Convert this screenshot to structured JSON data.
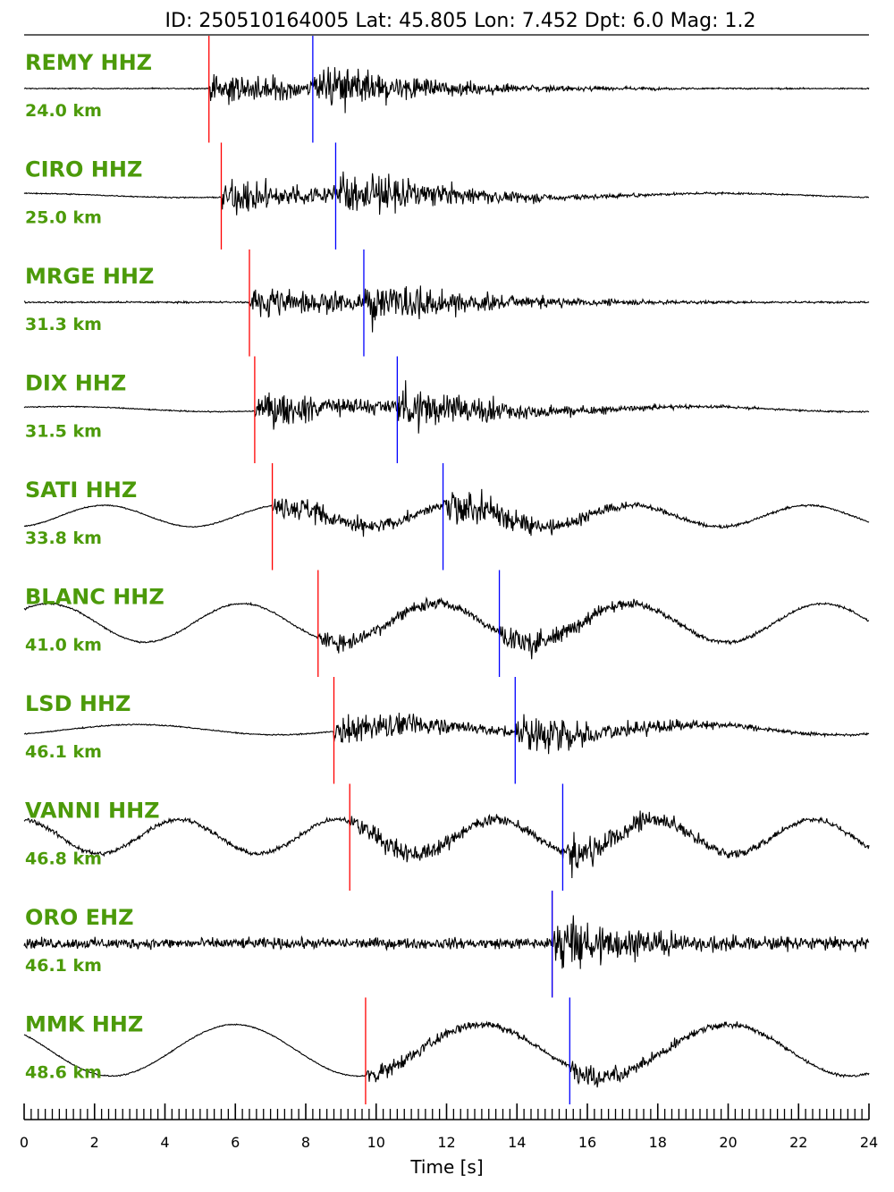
{
  "chart_data": {
    "type": "line",
    "title": "ID: 250510164005 Lat:  45.805 Lon:   7.452 Dpt:     6.0 Mag:   1.2",
    "xlabel": "Time [s]",
    "xlim": [
      0,
      24
    ],
    "xticks": [
      "0",
      "2",
      "4",
      "6",
      "8",
      "10",
      "12",
      "14",
      "16",
      "18",
      "20",
      "22",
      "24"
    ],
    "pick_colors": {
      "p": "#ff0000",
      "s": "#0000ff"
    },
    "trace_color": "#000000",
    "label_color": "#4c9a0a",
    "traces": [
      {
        "station": "REMY HHZ",
        "distance": "24.0 km",
        "p_time": 5.25,
        "s_time": 8.2,
        "noise": 0.02,
        "wave": 0.0,
        "wave_period": 0,
        "burst": 1.0
      },
      {
        "station": "CIRO HHZ",
        "distance": "25.0 km",
        "p_time": 5.6,
        "s_time": 8.85,
        "noise": 0.02,
        "wave": 0.05,
        "wave_period": 10,
        "burst": 1.0
      },
      {
        "station": "MRGE HHZ",
        "distance": "31.3 km",
        "p_time": 6.4,
        "s_time": 9.65,
        "noise": 0.03,
        "wave": 0.0,
        "wave_period": 0,
        "burst": 1.0
      },
      {
        "station": "DIX HHZ",
        "distance": "31.5 km",
        "p_time": 6.55,
        "s_time": 10.6,
        "noise": 0.02,
        "wave": 0.06,
        "wave_period": 9,
        "burst": 1.0
      },
      {
        "station": "SATI HHZ",
        "distance": "33.8 km",
        "p_time": 7.05,
        "s_time": 11.9,
        "noise": 0.02,
        "wave": 0.25,
        "wave_period": 5,
        "burst": 0.8
      },
      {
        "station": "BLANC HHZ",
        "distance": "41.0 km",
        "p_time": 8.35,
        "s_time": 13.5,
        "noise": 0.03,
        "wave": 0.45,
        "wave_period": 5.5,
        "burst": 0.6
      },
      {
        "station": "LSD HHZ",
        "distance": "46.1 km",
        "p_time": 8.8,
        "s_time": 13.95,
        "noise": 0.02,
        "wave": 0.12,
        "wave_period": 8,
        "burst": 0.9
      },
      {
        "station": "VANNI HHZ",
        "distance": "46.8 km",
        "p_time": 9.25,
        "s_time": 15.3,
        "noise": 0.08,
        "wave": 0.4,
        "wave_period": 4.5,
        "burst": 0.7
      },
      {
        "station": "ORO EHZ",
        "distance": "46.1 km",
        "p_time": 15.0,
        "s_time": 15.0,
        "noise": 0.18,
        "wave": 0.0,
        "wave_period": 0,
        "burst": 0.9
      },
      {
        "station": "MMK HHZ",
        "distance": "48.6 km",
        "p_time": 9.7,
        "s_time": 15.5,
        "noise": 0.02,
        "wave": 0.6,
        "wave_period": 7,
        "burst": 0.5
      }
    ]
  }
}
